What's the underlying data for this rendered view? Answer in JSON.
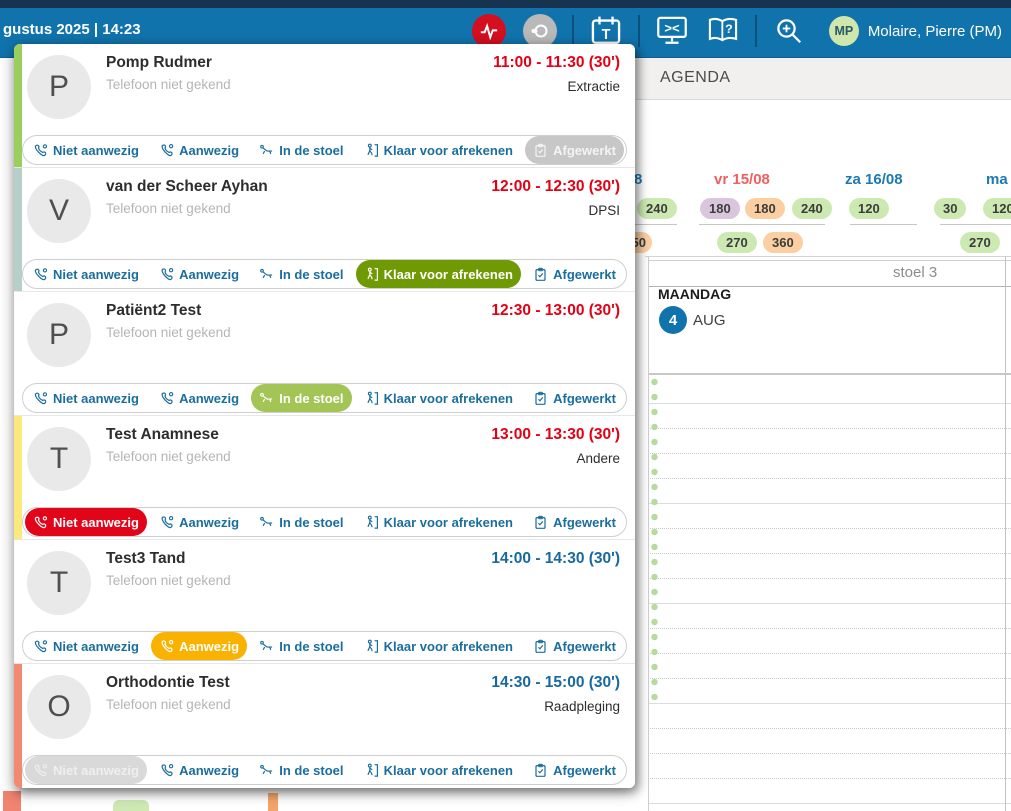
{
  "topbar": {
    "datetime": "gustus 2025 | 14:23",
    "icon_glyphs": {
      "calendar": "T",
      "terminal": "><",
      "help": "?"
    },
    "user": {
      "initials": "MP",
      "name": "Molaire, Pierre (PM)"
    }
  },
  "statuses": [
    {
      "key": "niet-aanwezig",
      "label": "Niet aanwezig"
    },
    {
      "key": "aanwezig",
      "label": "Aanwezig"
    },
    {
      "key": "in-de-stoel",
      "label": "In de stoel"
    },
    {
      "key": "klaar-voor-afrekenen",
      "label": "Klaar voor afrekenen"
    },
    {
      "key": "afgewerkt",
      "label": "Afgewerkt"
    }
  ],
  "appointments": [
    {
      "initial": "P",
      "name": "Pomp Rudmer",
      "phone": "Telefoon niet gekend",
      "time": "11:00 - 11:30 (30')",
      "time_color": "red",
      "type": "Extractie",
      "strip": "#9ace5f",
      "active_key": "afgewerkt",
      "active_bg": "#c7c7c7",
      "active_text": "#f4f4f4"
    },
    {
      "initial": "V",
      "name": "van der Scheer Ayhan",
      "phone": "Telefoon niet gekend",
      "time": "12:00 - 12:30 (30')",
      "time_color": "red",
      "type": "DPSI",
      "strip": "#b6cfc9",
      "active_key": "klaar-voor-afrekenen",
      "active_bg": "#6f9a04",
      "active_text": "#ffffff"
    },
    {
      "initial": "P",
      "name": "Patiënt2 Test",
      "phone": "Telefoon niet gekend",
      "time": "12:30 - 13:00 (30')",
      "time_color": "red",
      "type": "",
      "strip": null,
      "active_key": "in-de-stoel",
      "active_bg": "#a2c556",
      "active_text": "#ffffff"
    },
    {
      "initial": "T",
      "name": "Test Anamnese",
      "phone": "Telefoon niet gekend",
      "time": "13:00 - 13:30 (30')",
      "time_color": "red",
      "type": "Andere",
      "strip": "#fbe97e",
      "active_key": "niet-aanwezig",
      "active_bg": "#e2051a",
      "active_text": "#ffffff"
    },
    {
      "initial": "T",
      "name": "Test3 Tand",
      "phone": "Telefoon niet gekend",
      "time": "14:00 - 14:30 (30')",
      "time_color": "blue",
      "type": "",
      "strip": null,
      "active_key": "aanwezig",
      "active_bg": "#f9b200",
      "active_text": "#ffffff"
    },
    {
      "initial": "O",
      "name": "Orthodontie Test",
      "phone": "Telefoon niet gekend",
      "time": "14:30 - 15:00 (30')",
      "time_color": "blue",
      "type": "Raadpleging",
      "strip": "#f28a71",
      "active_key": "niet-aanwezig",
      "active_bg": "#d9d9d9",
      "active_text": "#efefef"
    }
  ],
  "agenda": {
    "tab_label": "AGENDA",
    "day_headers": [
      {
        "label": "8",
        "color": "blue"
      },
      {
        "label": "vr 15/08",
        "color": "red"
      },
      {
        "label": "za 16/08",
        "color": "blue"
      },
      {
        "label": "ma",
        "color": "blue"
      }
    ],
    "chips_row1": [
      {
        "value": "240",
        "color": "green"
      },
      {
        "value": "180",
        "color": "purple"
      },
      {
        "value": "180",
        "color": "orange"
      },
      {
        "value": "240",
        "color": "green"
      },
      {
        "value": "120",
        "color": "green"
      },
      {
        "value": "30",
        "color": "green"
      },
      {
        "value": "120",
        "color": "green"
      }
    ],
    "chips_row2": [
      {
        "value": "50",
        "color": "orange"
      },
      {
        "value": "270",
        "color": "green"
      },
      {
        "value": "360",
        "color": "orange"
      },
      {
        "value": "270",
        "color": "green"
      }
    ],
    "column_label": "stoel 3",
    "day_block": {
      "weekday": "MAANDAG",
      "day": "4",
      "month": "AUG"
    }
  },
  "colors": {
    "time_red": "#e30015",
    "time_blue": "#17699e",
    "chip_green": "#cde9b2",
    "chip_purple": "#d9c6dd",
    "chip_orange": "#fbcfa2",
    "day_red": "#f15f5f",
    "day_blue": "#1b79b4",
    "button_blue": "#1a6e9e",
    "topbar_blue": "#1173ac"
  }
}
